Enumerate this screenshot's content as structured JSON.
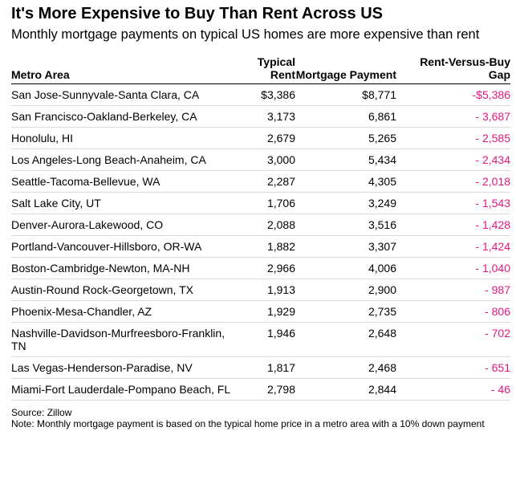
{
  "title": "It's More Expensive to Buy Than Rent Across US",
  "subtitle": "Monthly mortgage payments on typical US homes are more expensive than rent",
  "source": "Source: Zillow",
  "note": "Note: Monthly mortgage payment is based on the typical home price in a metro area with a 10% down payment",
  "colors": {
    "gap": "#e0187f",
    "text": "#000000",
    "rule": "#d9d9d9"
  },
  "chart_data": {
    "type": "table",
    "columns": [
      "Metro Area",
      "Typical Rent",
      "Mortgage Payment",
      "Rent-Versus-Buy Gap"
    ],
    "rows": [
      {
        "metro": "San Jose-Sunnyvale-Santa Clara, CA",
        "rent": "$3,386",
        "mortgage": "$8,771",
        "gap": "-$5,386"
      },
      {
        "metro": "San Francisco-Oakland-Berkeley, CA",
        "rent": "3,173",
        "mortgage": "6,861",
        "gap": "- 3,687"
      },
      {
        "metro": "Honolulu, HI",
        "rent": "2,679",
        "mortgage": "5,265",
        "gap": "- 2,585"
      },
      {
        "metro": "Los Angeles-Long Beach-Anaheim, CA",
        "rent": "3,000",
        "mortgage": "5,434",
        "gap": "- 2,434"
      },
      {
        "metro": "Seattle-Tacoma-Bellevue, WA",
        "rent": "2,287",
        "mortgage": "4,305",
        "gap": "- 2,018"
      },
      {
        "metro": "Salt Lake City, UT",
        "rent": "1,706",
        "mortgage": "3,249",
        "gap": "- 1,543"
      },
      {
        "metro": "Denver-Aurora-Lakewood, CO",
        "rent": "2,088",
        "mortgage": "3,516",
        "gap": "- 1,428"
      },
      {
        "metro": "Portland-Vancouver-Hillsboro, OR-WA",
        "rent": "1,882",
        "mortgage": "3,307",
        "gap": "- 1,424"
      },
      {
        "metro": "Boston-Cambridge-Newton, MA-NH",
        "rent": "2,966",
        "mortgage": "4,006",
        "gap": "- 1,040"
      },
      {
        "metro": "Austin-Round Rock-Georgetown, TX",
        "rent": "1,913",
        "mortgage": "2,900",
        "gap": "- 987"
      },
      {
        "metro": "Phoenix-Mesa-Chandler, AZ",
        "rent": "1,929",
        "mortgage": "2,735",
        "gap": "- 806"
      },
      {
        "metro": "Nashville-Davidson-Murfreesboro-Franklin, TN",
        "rent": "1,946",
        "mortgage": "2,648",
        "gap": "- 702"
      },
      {
        "metro": "Las Vegas-Henderson-Paradise, NV",
        "rent": "1,817",
        "mortgage": "2,468",
        "gap": "- 651"
      },
      {
        "metro": "Miami-Fort Lauderdale-Pompano Beach, FL",
        "rent": "2,798",
        "mortgage": "2,844",
        "gap": "- 46"
      }
    ]
  }
}
